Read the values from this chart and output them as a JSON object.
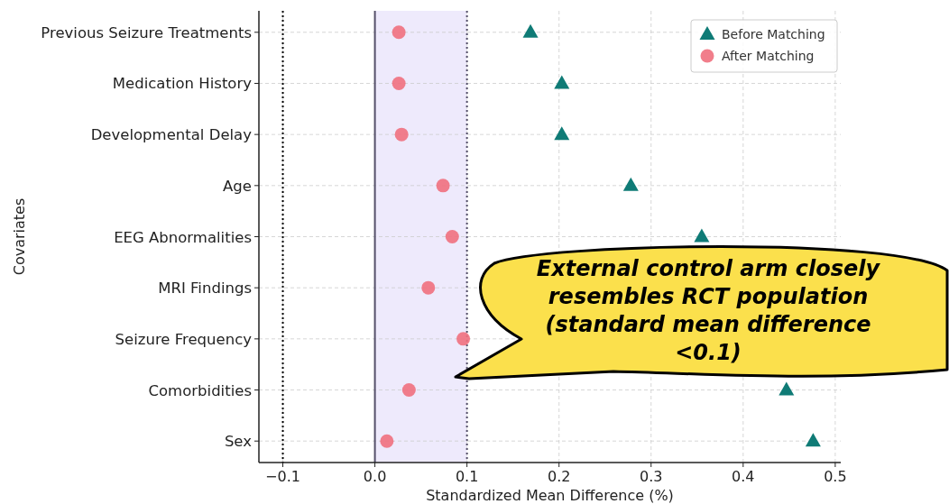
{
  "chart_data": {
    "type": "scatter",
    "orientation": "horizontal",
    "xlabel": "Standardized Mean Difference (%)",
    "ylabel": "Covariates",
    "categories": [
      "Previous Seizure Treatments",
      "Medication History",
      "Developmental Delay",
      "Age",
      "EEG Abnormalities",
      "MRI Findings",
      "Seizure Frequency",
      "Comorbidities",
      "Sex"
    ],
    "series": [
      {
        "name": "Before Matching",
        "color": "#0f7b76",
        "marker": "triangle",
        "values": [
          0.169,
          0.203,
          0.203,
          0.278,
          0.355,
          null,
          null,
          0.447,
          0.476
        ]
      },
      {
        "name": "After Matching",
        "color": "#f0707e",
        "marker": "circle",
        "values": [
          0.026,
          0.026,
          0.029,
          0.074,
          0.084,
          0.058,
          0.096,
          0.037,
          0.013
        ]
      }
    ],
    "xlim": [
      -0.126,
      0.506
    ],
    "xticks": [
      {
        "value": -0.1,
        "label": "−0.1"
      },
      {
        "value": 0,
        "label": "0.0"
      },
      0.1,
      0.2,
      0.3,
      0.4,
      0.5
    ],
    "ref_lines": [
      {
        "axis": "x",
        "value": -0.1,
        "color": "#000000",
        "line_style": "dotted"
      },
      {
        "axis": "x",
        "value": 0,
        "color": "#55506a",
        "line_style": "solid"
      },
      {
        "axis": "x",
        "value": 0.1,
        "color": "#55506a",
        "line_style": "dotted"
      }
    ],
    "bands": [
      {
        "axis": "x",
        "from": 0,
        "to": 0.1,
        "color": "#eeeafc"
      }
    ],
    "annotations": [
      "External control arm closely resembles RCT population (standard mean difference <0.1)"
    ],
    "grid": true,
    "legend": "top right"
  }
}
